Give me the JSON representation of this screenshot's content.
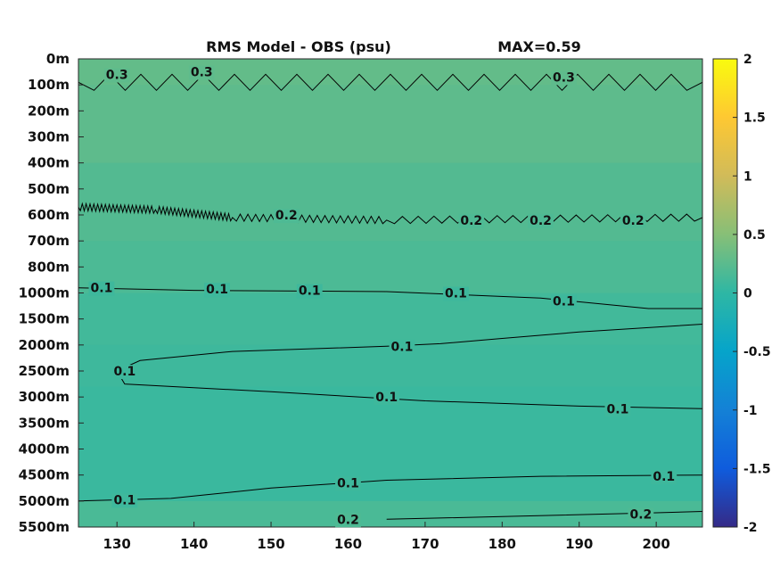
{
  "chart_data": {
    "type": "heatmap",
    "title": "RMS Model - OBS (psu)",
    "max_label": "MAX=0.59",
    "xlim": [
      125,
      206
    ],
    "x_ticks": [
      "130",
      "140",
      "150",
      "160",
      "170",
      "180",
      "190",
      "200"
    ],
    "y_ticks": [
      "0m",
      "100m",
      "200m",
      "300m",
      "400m",
      "500m",
      "600m",
      "700m",
      "800m",
      "1000m",
      "1500m",
      "2000m",
      "2500m",
      "3000m",
      "3500m",
      "4000m",
      "4500m",
      "5000m",
      "5500m"
    ],
    "colorbar": {
      "range": [
        -2,
        2
      ],
      "ticks": [
        "2",
        "1.5",
        "1",
        "0.5",
        "0",
        "-0.5",
        "-1",
        "-1.5",
        "-2"
      ],
      "colormap": "parula"
    },
    "layers": [
      {
        "depth_index": [
          0,
          1
        ],
        "value": 0.3
      },
      {
        "depth_index": [
          1,
          4
        ],
        "value": 0.27
      },
      {
        "depth_index": [
          4,
          7
        ],
        "value": 0.21
      },
      {
        "depth_index": [
          7,
          9
        ],
        "value": 0.17
      },
      {
        "depth_index": [
          9,
          11
        ],
        "value": 0.11
      },
      {
        "depth_index": [
          11,
          12.6
        ],
        "value": 0.09
      },
      {
        "depth_index": [
          12.6,
          17
        ],
        "value": 0.07
      },
      {
        "depth_index": [
          17,
          18
        ],
        "value": 0.16
      }
    ],
    "contours": [
      {
        "level": 0.3,
        "points": [
          [
            125,
            0.9
          ],
          [
            206,
            0.9
          ]
        ],
        "jagged": true,
        "labels": [
          [
            130,
            0.6,
            "0.3"
          ],
          [
            141,
            0.5,
            "0.3"
          ],
          [
            188,
            0.7,
            "0.3"
          ]
        ]
      },
      {
        "level": 0.2,
        "points": [
          [
            125,
            5.7
          ],
          [
            135,
            5.8
          ],
          [
            145,
            6.1
          ],
          [
            165,
            6.2
          ],
          [
            206,
            6.1
          ]
        ],
        "jagged": true,
        "labels": [
          [
            152,
            6.0,
            "0.2"
          ],
          [
            176,
            6.2,
            "0.2"
          ],
          [
            185,
            6.2,
            "0.2"
          ],
          [
            197,
            6.2,
            "0.2"
          ]
        ]
      },
      {
        "level": 0.1,
        "points": [
          [
            125,
            8.8
          ],
          [
            140,
            8.9
          ],
          [
            165,
            8.95
          ],
          [
            185,
            9.2
          ],
          [
            199,
            9.6
          ],
          [
            206,
            9.6
          ]
        ],
        "jagged": false,
        "labels": [
          [
            128,
            8.8,
            "0.1"
          ],
          [
            143,
            8.85,
            "0.1"
          ],
          [
            155,
            8.9,
            "0.1"
          ],
          [
            174,
            9.0,
            "0.1"
          ],
          [
            188,
            9.3,
            "0.1"
          ]
        ]
      },
      {
        "level": 0.1,
        "points": [
          [
            206,
            10.2
          ],
          [
            190,
            10.5
          ],
          [
            180,
            10.75
          ],
          [
            172,
            10.95
          ],
          [
            165,
            11.05
          ],
          [
            145,
            11.25
          ],
          [
            133,
            11.6
          ],
          [
            130,
            12.0
          ],
          [
            131,
            12.5
          ],
          [
            150,
            12.8
          ],
          [
            170,
            13.15
          ],
          [
            190,
            13.35
          ],
          [
            206,
            13.45
          ]
        ],
        "jagged": false,
        "labels": [
          [
            167,
            11.05,
            "0.1"
          ],
          [
            131,
            12.0,
            "0.1"
          ],
          [
            165,
            13.0,
            "0.1"
          ],
          [
            195,
            13.45,
            "0.1"
          ]
        ]
      },
      {
        "level": 0.1,
        "points": [
          [
            125,
            17.0
          ],
          [
            137,
            16.9
          ],
          [
            150,
            16.5
          ],
          [
            165,
            16.2
          ],
          [
            185,
            16.05
          ],
          [
            206,
            16.0
          ]
        ],
        "jagged": false,
        "labels": [
          [
            131,
            16.95,
            "0.1"
          ],
          [
            160,
            16.3,
            "0.1"
          ],
          [
            201,
            16.05,
            "0.1"
          ]
        ]
      },
      {
        "level": 0.2,
        "points": [
          [
            165,
            17.7
          ],
          [
            180,
            17.6
          ],
          [
            200,
            17.45
          ],
          [
            206,
            17.4
          ]
        ],
        "jagged": false,
        "labels": [
          [
            160,
            17.7,
            "0.2"
          ],
          [
            198,
            17.5,
            "0.2"
          ]
        ]
      }
    ]
  }
}
